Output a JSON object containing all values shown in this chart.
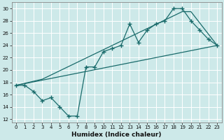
{
  "xlabel": "Humidex (Indice chaleur)",
  "xlim": [
    -0.5,
    23.5
  ],
  "ylim": [
    11.5,
    31.0
  ],
  "xticks": [
    0,
    1,
    2,
    3,
    4,
    5,
    6,
    7,
    8,
    9,
    10,
    11,
    12,
    13,
    14,
    15,
    16,
    17,
    18,
    19,
    20,
    21,
    22,
    23
  ],
  "yticks": [
    12,
    14,
    16,
    18,
    20,
    22,
    24,
    26,
    28,
    30
  ],
  "bg_color": "#cde9e9",
  "line_color": "#1a6b6b",
  "grid_color": "#ffffff",
  "line1_x": [
    0,
    1,
    2,
    3,
    4,
    5,
    6,
    7,
    8,
    9,
    10,
    11,
    12,
    13,
    14,
    15,
    16,
    17,
    18,
    19,
    20,
    21,
    22,
    23
  ],
  "line1_y": [
    17.5,
    17.5,
    16.5,
    15.0,
    15.5,
    14.0,
    12.5,
    12.5,
    20.5,
    20.5,
    23.0,
    23.5,
    24.0,
    27.5,
    24.5,
    26.5,
    27.5,
    28.0,
    30.0,
    30.0,
    28.0,
    26.5,
    25.0,
    24.0
  ],
  "line2_x": [
    0,
    23
  ],
  "line2_y": [
    17.5,
    24.0
  ],
  "line3_x": [
    0,
    3,
    19,
    20,
    23
  ],
  "line3_y": [
    17.5,
    18.5,
    29.5,
    29.5,
    24.0
  ],
  "marker_x": [
    0,
    1,
    2,
    3,
    4,
    5,
    6,
    7,
    8,
    9,
    10,
    11,
    12,
    13,
    14,
    15,
    16,
    17,
    18,
    19,
    20,
    21,
    22,
    23
  ],
  "marker_y": [
    17.5,
    17.5,
    16.5,
    15.0,
    15.5,
    14.0,
    12.5,
    12.5,
    20.5,
    20.5,
    23.0,
    23.5,
    24.0,
    27.5,
    24.5,
    26.5,
    27.5,
    28.0,
    30.0,
    30.0,
    28.0,
    26.5,
    25.0,
    24.0
  ]
}
